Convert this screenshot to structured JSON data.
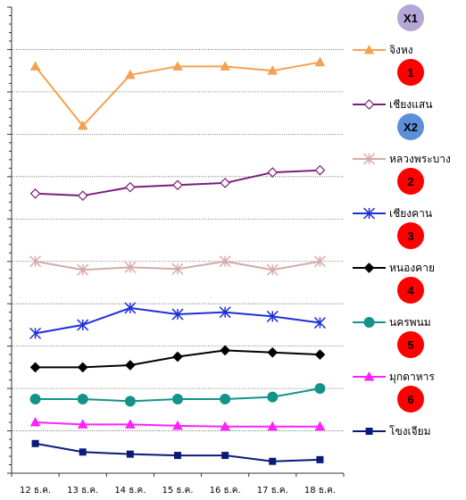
{
  "chart_data": {
    "type": "line",
    "categories": [
      "12 ธ.ค.",
      "13 ธ.ค.",
      "14 ธ.ค.",
      "15 ธ.ค.",
      "16 ธ.ค.",
      "17 ธ.ค.",
      "18 ธ.ค."
    ],
    "grid": true,
    "legend_placement": "right",
    "series": [
      {
        "name": "จิงหง",
        "badge": "X1",
        "badge_color": "#b4a7d6",
        "color": "#f4a24f",
        "marker": "triangle-filled",
        "values": [
          8.6,
          7.2,
          8.4,
          8.6,
          8.6,
          8.5,
          8.7
        ]
      },
      {
        "name": "เชียงแสน",
        "badge": "1",
        "badge_color": "#ff0000",
        "color": "#7b1e7a",
        "marker": "diamond-open",
        "values": [
          5.6,
          5.55,
          5.75,
          5.8,
          5.85,
          6.1,
          6.15
        ]
      },
      {
        "name": "หลวงพระบาง",
        "badge": "X2",
        "badge_color": "#5b8fd8",
        "color": "#d8a8a8",
        "marker": "asterisk",
        "values": [
          4.0,
          3.8,
          3.86,
          3.82,
          4.0,
          3.8,
          4.0
        ]
      },
      {
        "name": "เชียงคาน",
        "badge": "2",
        "badge_color": "#ff0000",
        "color": "#1f2fd8",
        "marker": "asterisk",
        "values": [
          2.3,
          2.5,
          2.9,
          2.75,
          2.8,
          2.7,
          2.55
        ]
      },
      {
        "name": "หนองคาย",
        "badge": "3",
        "badge_color": "#ff0000",
        "color": "#000000",
        "marker": "diamond-filled",
        "values": [
          1.5,
          1.5,
          1.55,
          1.75,
          1.9,
          1.85,
          1.8
        ]
      },
      {
        "name": "นครพนม",
        "badge": "4",
        "badge_color": "#ff0000",
        "color": "#13938a",
        "marker": "circle-filled",
        "values": [
          0.75,
          0.75,
          0.7,
          0.75,
          0.75,
          0.8,
          1.0
        ]
      },
      {
        "name": "มุกดาหาร",
        "badge": "5",
        "badge_color": "#ff0000",
        "color": "#ff22ff",
        "marker": "triangle-filled",
        "values": [
          0.2,
          0.15,
          0.15,
          0.12,
          0.1,
          0.1,
          0.1
        ]
      },
      {
        "name": "โขงเจียม",
        "badge": "6",
        "badge_color": "#ff0000",
        "color": "#0a1a7a",
        "marker": "square-filled",
        "values": [
          -0.3,
          -0.5,
          -0.55,
          -0.58,
          -0.58,
          -0.72,
          -0.68
        ]
      }
    ]
  }
}
